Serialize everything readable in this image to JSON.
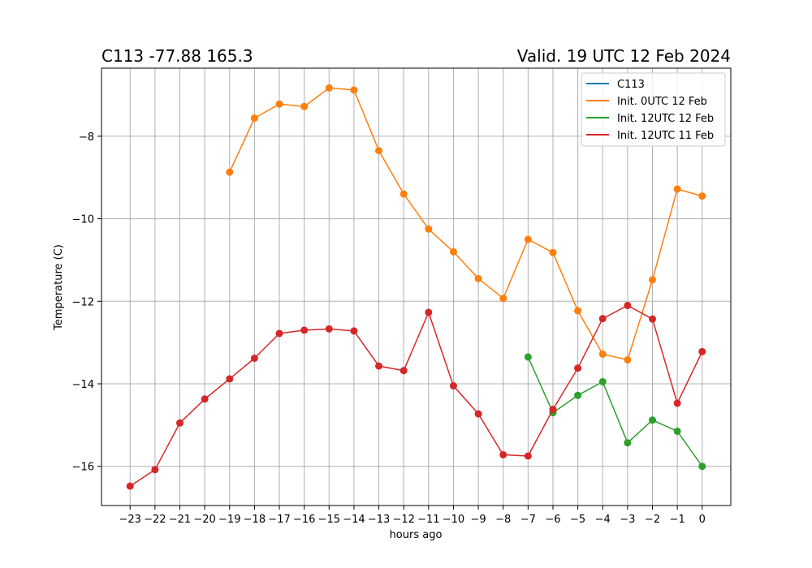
{
  "chart_data": {
    "type": "line",
    "title_left": "C113 -77.88 165.3",
    "title_right": "Valid. 19 UTC 12 Feb 2024",
    "xlabel": "hours ago",
    "ylabel": "Temperature (C)",
    "xlim": [
      -24.15,
      1.15
    ],
    "ylim": [
      -16.95,
      -6.35
    ],
    "xticks": [
      -23,
      -22,
      -21,
      -20,
      -19,
      -18,
      -17,
      -16,
      -15,
      -14,
      -13,
      -12,
      -11,
      -10,
      -9,
      -8,
      -7,
      -6,
      -5,
      -4,
      -3,
      -2,
      -1,
      0
    ],
    "xtick_labels": [
      "−23",
      "−22",
      "−21",
      "−20",
      "−19",
      "−18",
      "−17",
      "−16",
      "−15",
      "−14",
      "−13",
      "−12",
      "−11",
      "−10",
      "−9",
      "−8",
      "−7",
      "−6",
      "−5",
      "−4",
      "−3",
      "−2",
      "−1",
      "0"
    ],
    "yticks": [
      -16,
      -14,
      -12,
      -10,
      -8
    ],
    "ytick_labels": [
      "−16",
      "−14",
      "−12",
      "−10",
      "−8"
    ],
    "grid": true,
    "legend_position": "top-right",
    "series": [
      {
        "name": "C113",
        "color": "#1f77b4",
        "x": [],
        "y": []
      },
      {
        "name": "Init. 0UTC 12 Feb",
        "color": "#ff7f0e",
        "x": [
          -19,
          -18,
          -17,
          -16,
          -15,
          -14,
          -13,
          -12,
          -11,
          -10,
          -9,
          -8,
          -7,
          -6,
          -5,
          -4,
          -3,
          -2,
          -1,
          0
        ],
        "y": [
          -8.87,
          -7.56,
          -7.22,
          -7.28,
          -6.83,
          -6.88,
          -8.35,
          -9.4,
          -10.25,
          -10.8,
          -11.45,
          -11.93,
          -10.5,
          -10.82,
          -12.23,
          -13.28,
          -13.42,
          -11.48,
          -9.28,
          -9.45
        ]
      },
      {
        "name": "Init. 12UTC 12 Feb",
        "color": "#2ca02c",
        "x": [
          -7,
          -6,
          -5,
          -4,
          -3,
          -2,
          -1,
          0
        ],
        "y": [
          -13.35,
          -14.7,
          -14.28,
          -13.95,
          -15.43,
          -14.88,
          -15.15,
          -16.0
        ]
      },
      {
        "name": "Init. 12UTC 11 Feb",
        "color": "#d62728",
        "x": [
          -23,
          -22,
          -21,
          -20,
          -19,
          -18,
          -17,
          -16,
          -15,
          -14,
          -13,
          -12,
          -11,
          -10,
          -9,
          -8,
          -7,
          -6,
          -5,
          -4,
          -3,
          -2,
          -1,
          0
        ],
        "y": [
          -16.48,
          -16.08,
          -14.95,
          -14.37,
          -13.88,
          -13.38,
          -12.78,
          -12.7,
          -12.67,
          -12.72,
          -13.57,
          -13.68,
          -12.27,
          -14.05,
          -14.73,
          -15.72,
          -15.75,
          -14.62,
          -13.62,
          -12.42,
          -12.1,
          -12.43,
          -14.47,
          -13.22
        ]
      }
    ]
  }
}
